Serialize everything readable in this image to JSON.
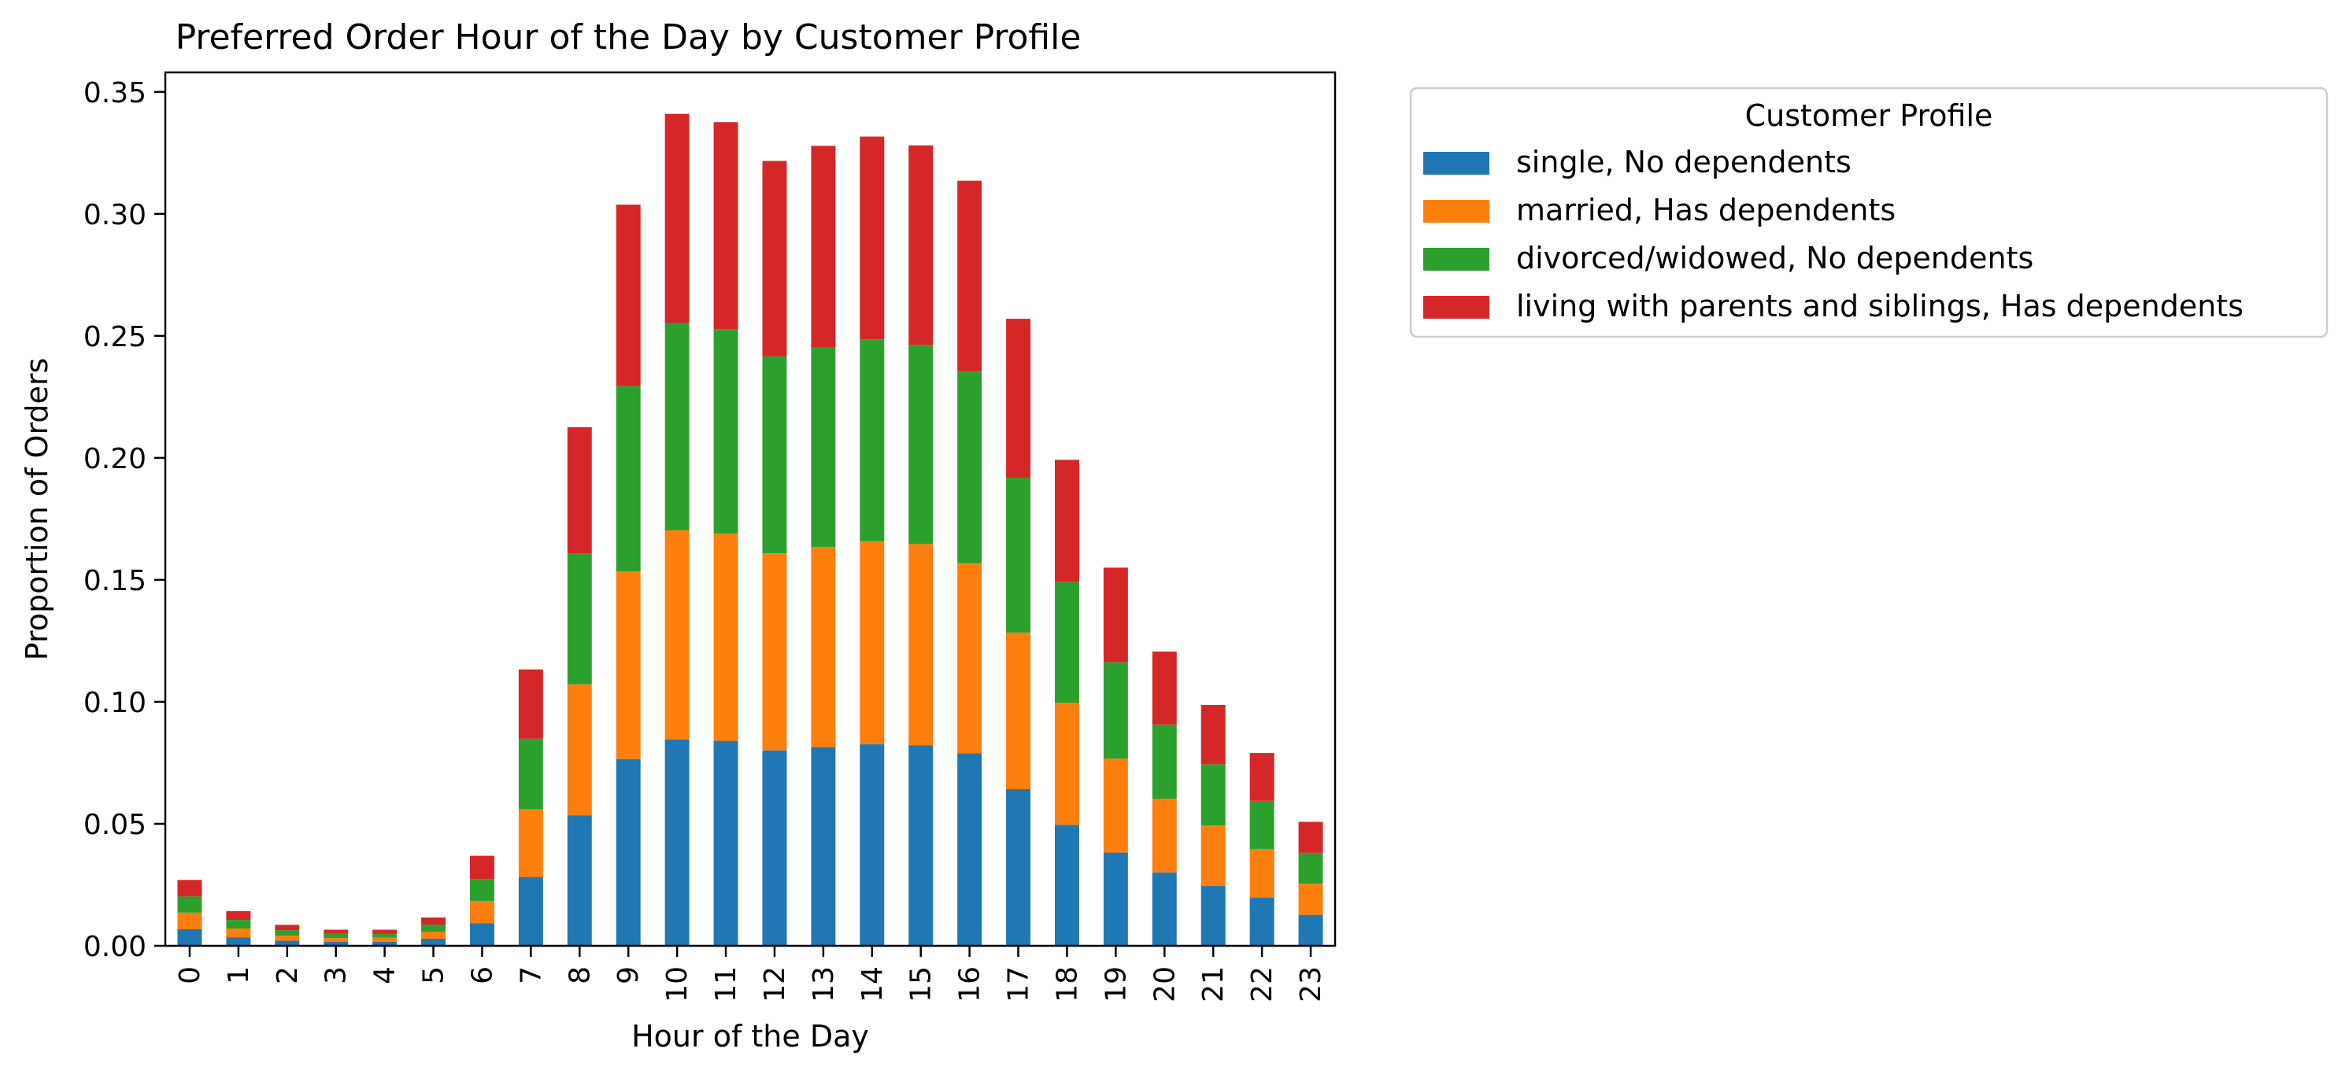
{
  "chart_data": {
    "type": "bar",
    "stacked": true,
    "title": "Preferred Order Hour of the Day by Customer Profile",
    "xlabel": "Hour of the Day",
    "ylabel": "Proportion of Orders",
    "categories": [
      "0",
      "1",
      "2",
      "3",
      "4",
      "5",
      "6",
      "7",
      "8",
      "9",
      "10",
      "11",
      "12",
      "13",
      "14",
      "15",
      "16",
      "17",
      "18",
      "19",
      "20",
      "21",
      "22",
      "23"
    ],
    "ylim": [
      0,
      0.358
    ],
    "yticks": [
      0.0,
      0.05,
      0.1,
      0.15,
      0.2,
      0.25,
      0.3,
      0.35
    ],
    "ytick_labels": [
      "0.00",
      "0.05",
      "0.10",
      "0.15",
      "0.20",
      "0.25",
      "0.30",
      "0.35"
    ],
    "grid": false,
    "legend": {
      "title": "Customer Profile",
      "placement": "outside-right-top"
    },
    "series": [
      {
        "name": "single, No dependents",
        "color": "#1f77b4",
        "values": [
          0.0068,
          0.0035,
          0.0021,
          0.0016,
          0.0017,
          0.0029,
          0.0093,
          0.0282,
          0.0535,
          0.0765,
          0.0845,
          0.084,
          0.0801,
          0.0815,
          0.0826,
          0.0822,
          0.0789,
          0.0642,
          0.0496,
          0.0382,
          0.0301,
          0.0245,
          0.0198,
          0.0127
        ]
      },
      {
        "name": "married, Has dependents",
        "color": "#ff7f0e",
        "values": [
          0.0068,
          0.0036,
          0.0021,
          0.0016,
          0.0016,
          0.0029,
          0.0091,
          0.0278,
          0.0537,
          0.077,
          0.0858,
          0.085,
          0.0808,
          0.082,
          0.0832,
          0.0825,
          0.0779,
          0.0642,
          0.05,
          0.0385,
          0.0301,
          0.0248,
          0.0199,
          0.0127
        ]
      },
      {
        "name": "divorced/widowed, No dependents",
        "color": "#2ca02c",
        "values": [
          0.0066,
          0.0035,
          0.0022,
          0.0017,
          0.0017,
          0.0029,
          0.0089,
          0.0289,
          0.0537,
          0.0759,
          0.085,
          0.0838,
          0.0807,
          0.0818,
          0.0828,
          0.0816,
          0.0786,
          0.0635,
          0.0495,
          0.0395,
          0.0305,
          0.0251,
          0.0197,
          0.0127
        ]
      },
      {
        "name": "living with parents and siblings, Has dependents",
        "color": "#d62728",
        "values": [
          0.0068,
          0.0036,
          0.0022,
          0.0017,
          0.0016,
          0.0029,
          0.0096,
          0.0284,
          0.0517,
          0.0744,
          0.0857,
          0.0848,
          0.0801,
          0.0826,
          0.0831,
          0.0818,
          0.0782,
          0.0651,
          0.0501,
          0.0388,
          0.0299,
          0.0243,
          0.0196,
          0.0127
        ]
      }
    ]
  }
}
